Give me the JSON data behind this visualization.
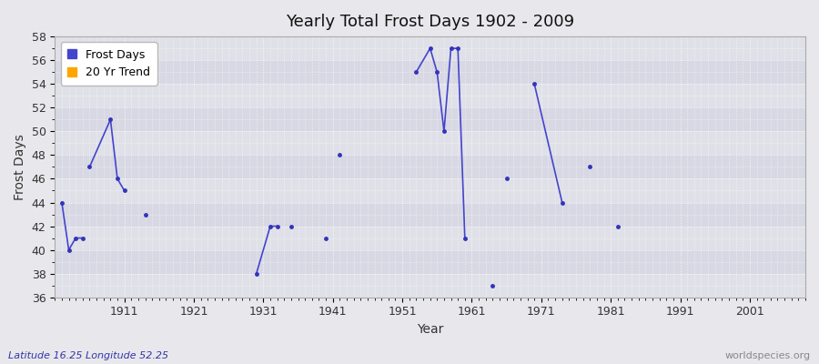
{
  "title": "Yearly Total Frost Days 1902 - 2009",
  "xlabel": "Year",
  "ylabel": "Frost Days",
  "xlim": [
    1901,
    2009
  ],
  "ylim": [
    36,
    58
  ],
  "yticks": [
    36,
    38,
    40,
    42,
    44,
    46,
    48,
    50,
    52,
    54,
    56,
    58
  ],
  "xticks": [
    1911,
    1921,
    1931,
    1941,
    1951,
    1961,
    1971,
    1981,
    1991,
    2001
  ],
  "xtick_labels": [
    "1911",
    "1921",
    "1931",
    "1941",
    "1951",
    "1961",
    "1971",
    "1981",
    "1991",
    "2001"
  ],
  "line_color": "#4444cc",
  "dot_color": "#3333bb",
  "trend_color": "#FFA500",
  "background_color": "#e8e8ec",
  "plot_bg_color": "#e0e0e8",
  "grid_color": "#ffffff",
  "alt_band_color": "#d8d8e4",
  "subtitle_left": "Latitude 16.25 Longitude 52.25",
  "subtitle_right": "worldspecies.org",
  "legend_entries": [
    "Frost Days",
    "20 Yr Trend"
  ],
  "connected_segments": [
    [
      [
        1902,
        44
      ],
      [
        1903,
        40
      ],
      [
        1904,
        41
      ],
      [
        1905,
        41
      ]
    ],
    [
      [
        1906,
        47
      ],
      [
        1909,
        51
      ],
      [
        1910,
        46
      ],
      [
        1911,
        45
      ]
    ],
    [
      [
        1930,
        38
      ],
      [
        1932,
        42
      ],
      [
        1933,
        42
      ]
    ],
    [
      [
        1953,
        55
      ],
      [
        1955,
        57
      ],
      [
        1956,
        55
      ],
      [
        1957,
        50
      ],
      [
        1958,
        57
      ],
      [
        1959,
        57
      ],
      [
        1960,
        41
      ]
    ],
    [
      [
        1970,
        54
      ],
      [
        1974,
        44
      ]
    ]
  ],
  "isolated_points": [
    [
      1914,
      43
    ],
    [
      1935,
      42
    ],
    [
      1940,
      41
    ],
    [
      1942,
      48
    ],
    [
      1964,
      37
    ],
    [
      1966,
      46
    ],
    [
      1978,
      47
    ],
    [
      1982,
      42
    ]
  ]
}
